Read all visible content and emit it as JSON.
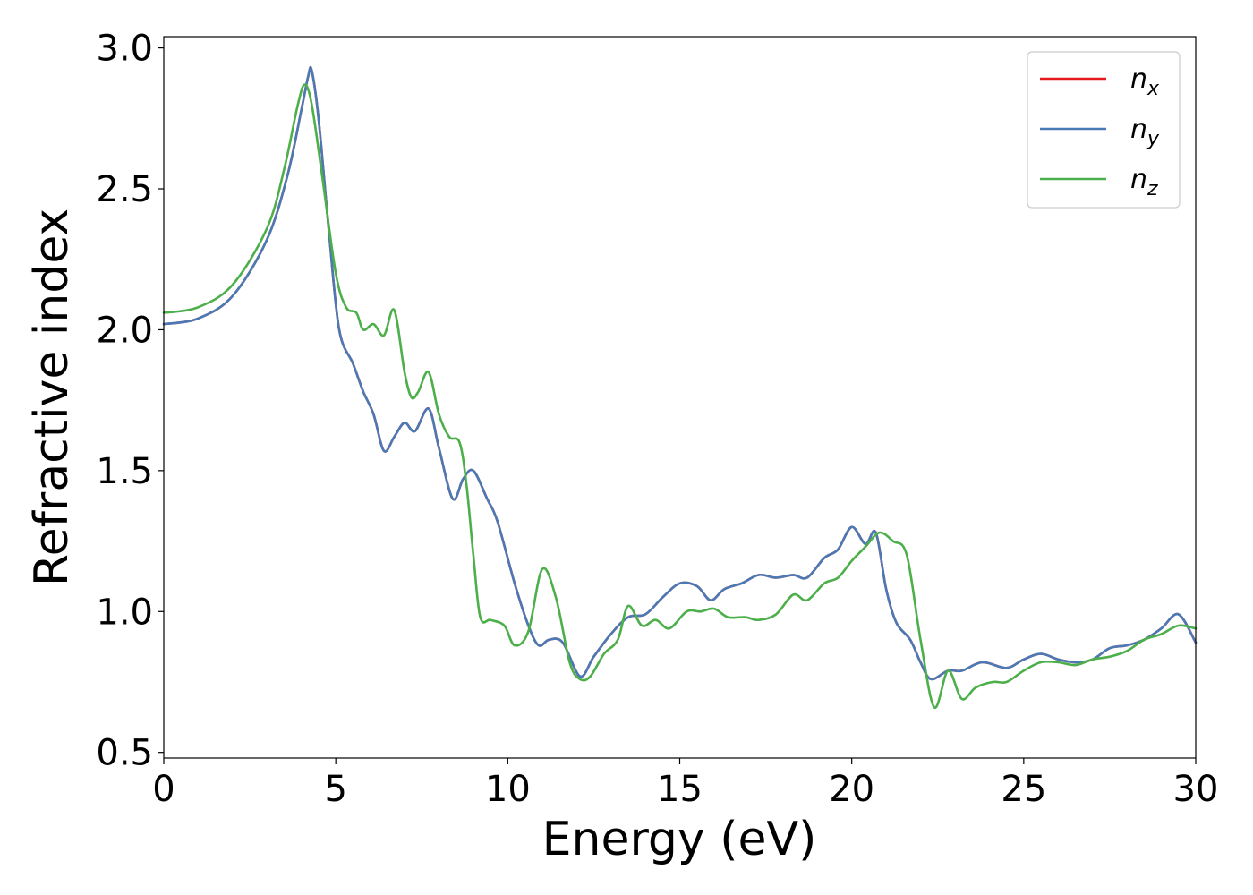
{
  "chart_data": {
    "type": "line",
    "title": "",
    "xlabel": "Energy (eV)",
    "ylabel": "Refractive index",
    "xlim": [
      0,
      30
    ],
    "ylim": [
      0.48,
      3.04
    ],
    "xticks": [
      0,
      5,
      10,
      15,
      20,
      25,
      30
    ],
    "yticks": [
      0.5,
      1.0,
      1.5,
      2.0,
      2.5,
      3.0
    ],
    "xtick_labels": [
      "0",
      "5",
      "10",
      "15",
      "20",
      "25",
      "30"
    ],
    "ytick_labels": [
      "0.5",
      "1.0",
      "1.5",
      "2.0",
      "2.5",
      "3.0"
    ],
    "grid": false,
    "legend_position": "top-right",
    "series": [
      {
        "name": "n_x",
        "legend_base": "n",
        "legend_sub": "x",
        "color": "#e41a1c",
        "points": [
          [
            0,
            2.02
          ],
          [
            1,
            2.04
          ],
          [
            2,
            2.12
          ],
          [
            3,
            2.32
          ],
          [
            3.6,
            2.55
          ],
          [
            4.0,
            2.78
          ],
          [
            4.2,
            2.9
          ],
          [
            4.3,
            2.92
          ],
          [
            4.5,
            2.75
          ],
          [
            4.8,
            2.35
          ],
          [
            5.1,
            2.0
          ],
          [
            5.5,
            1.88
          ],
          [
            5.8,
            1.78
          ],
          [
            6.1,
            1.7
          ],
          [
            6.4,
            1.57
          ],
          [
            6.7,
            1.62
          ],
          [
            7.0,
            1.67
          ],
          [
            7.3,
            1.64
          ],
          [
            7.7,
            1.72
          ],
          [
            8.0,
            1.58
          ],
          [
            8.4,
            1.4
          ],
          [
            8.7,
            1.47
          ],
          [
            9.0,
            1.5
          ],
          [
            9.4,
            1.4
          ],
          [
            9.7,
            1.32
          ],
          [
            10.2,
            1.1
          ],
          [
            10.6,
            0.95
          ],
          [
            10.9,
            0.88
          ],
          [
            11.2,
            0.9
          ],
          [
            11.6,
            0.89
          ],
          [
            12.1,
            0.77
          ],
          [
            12.5,
            0.84
          ],
          [
            13.0,
            0.92
          ],
          [
            13.5,
            0.98
          ],
          [
            14.0,
            0.99
          ],
          [
            14.5,
            1.05
          ],
          [
            15.0,
            1.1
          ],
          [
            15.5,
            1.09
          ],
          [
            15.9,
            1.04
          ],
          [
            16.3,
            1.08
          ],
          [
            16.8,
            1.1
          ],
          [
            17.3,
            1.13
          ],
          [
            17.8,
            1.12
          ],
          [
            18.3,
            1.13
          ],
          [
            18.7,
            1.12
          ],
          [
            19.2,
            1.19
          ],
          [
            19.6,
            1.22
          ],
          [
            20.0,
            1.3
          ],
          [
            20.4,
            1.24
          ],
          [
            20.7,
            1.28
          ],
          [
            21.0,
            1.08
          ],
          [
            21.3,
            0.96
          ],
          [
            21.7,
            0.9
          ],
          [
            22.0,
            0.82
          ],
          [
            22.3,
            0.76
          ],
          [
            22.8,
            0.79
          ],
          [
            23.2,
            0.79
          ],
          [
            23.8,
            0.82
          ],
          [
            24.5,
            0.8
          ],
          [
            25.0,
            0.83
          ],
          [
            25.5,
            0.85
          ],
          [
            26.0,
            0.83
          ],
          [
            26.5,
            0.82
          ],
          [
            27.0,
            0.83
          ],
          [
            27.5,
            0.87
          ],
          [
            28.0,
            0.88
          ],
          [
            28.5,
            0.9
          ],
          [
            29.0,
            0.94
          ],
          [
            29.5,
            0.99
          ],
          [
            30.0,
            0.89
          ]
        ]
      },
      {
        "name": "n_y",
        "legend_base": "n",
        "legend_sub": "y",
        "color": "#4a7ab5",
        "points": [
          [
            0,
            2.02
          ],
          [
            1,
            2.04
          ],
          [
            2,
            2.12
          ],
          [
            3,
            2.32
          ],
          [
            3.6,
            2.55
          ],
          [
            4.0,
            2.78
          ],
          [
            4.2,
            2.9
          ],
          [
            4.3,
            2.92
          ],
          [
            4.5,
            2.75
          ],
          [
            4.8,
            2.35
          ],
          [
            5.1,
            2.0
          ],
          [
            5.5,
            1.88
          ],
          [
            5.8,
            1.78
          ],
          [
            6.1,
            1.7
          ],
          [
            6.4,
            1.57
          ],
          [
            6.7,
            1.62
          ],
          [
            7.0,
            1.67
          ],
          [
            7.3,
            1.64
          ],
          [
            7.7,
            1.72
          ],
          [
            8.0,
            1.58
          ],
          [
            8.4,
            1.4
          ],
          [
            8.7,
            1.47
          ],
          [
            9.0,
            1.5
          ],
          [
            9.4,
            1.4
          ],
          [
            9.7,
            1.32
          ],
          [
            10.2,
            1.1
          ],
          [
            10.6,
            0.95
          ],
          [
            10.9,
            0.88
          ],
          [
            11.2,
            0.9
          ],
          [
            11.6,
            0.89
          ],
          [
            12.1,
            0.77
          ],
          [
            12.5,
            0.84
          ],
          [
            13.0,
            0.92
          ],
          [
            13.5,
            0.98
          ],
          [
            14.0,
            0.99
          ],
          [
            14.5,
            1.05
          ],
          [
            15.0,
            1.1
          ],
          [
            15.5,
            1.09
          ],
          [
            15.9,
            1.04
          ],
          [
            16.3,
            1.08
          ],
          [
            16.8,
            1.1
          ],
          [
            17.3,
            1.13
          ],
          [
            17.8,
            1.12
          ],
          [
            18.3,
            1.13
          ],
          [
            18.7,
            1.12
          ],
          [
            19.2,
            1.19
          ],
          [
            19.6,
            1.22
          ],
          [
            20.0,
            1.3
          ],
          [
            20.4,
            1.24
          ],
          [
            20.7,
            1.28
          ],
          [
            21.0,
            1.08
          ],
          [
            21.3,
            0.96
          ],
          [
            21.7,
            0.9
          ],
          [
            22.0,
            0.82
          ],
          [
            22.3,
            0.76
          ],
          [
            22.8,
            0.79
          ],
          [
            23.2,
            0.79
          ],
          [
            23.8,
            0.82
          ],
          [
            24.5,
            0.8
          ],
          [
            25.0,
            0.83
          ],
          [
            25.5,
            0.85
          ],
          [
            26.0,
            0.83
          ],
          [
            26.5,
            0.82
          ],
          [
            27.0,
            0.83
          ],
          [
            27.5,
            0.87
          ],
          [
            28.0,
            0.88
          ],
          [
            28.5,
            0.9
          ],
          [
            29.0,
            0.94
          ],
          [
            29.5,
            0.99
          ],
          [
            30.0,
            0.89
          ]
        ]
      },
      {
        "name": "n_z",
        "legend_base": "n",
        "legend_sub": "z",
        "color": "#4daf4a",
        "points": [
          [
            0,
            2.06
          ],
          [
            1,
            2.08
          ],
          [
            2,
            2.16
          ],
          [
            3,
            2.36
          ],
          [
            3.5,
            2.57
          ],
          [
            3.9,
            2.8
          ],
          [
            4.1,
            2.87
          ],
          [
            4.3,
            2.8
          ],
          [
            4.6,
            2.55
          ],
          [
            5.0,
            2.2
          ],
          [
            5.3,
            2.08
          ],
          [
            5.6,
            2.06
          ],
          [
            5.8,
            2.0
          ],
          [
            6.1,
            2.02
          ],
          [
            6.4,
            1.98
          ],
          [
            6.7,
            2.07
          ],
          [
            7.0,
            1.85
          ],
          [
            7.2,
            1.76
          ],
          [
            7.4,
            1.78
          ],
          [
            7.7,
            1.85
          ],
          [
            8.0,
            1.7
          ],
          [
            8.3,
            1.62
          ],
          [
            8.6,
            1.6
          ],
          [
            8.8,
            1.45
          ],
          [
            9.0,
            1.2
          ],
          [
            9.2,
            0.98
          ],
          [
            9.5,
            0.97
          ],
          [
            9.9,
            0.95
          ],
          [
            10.2,
            0.88
          ],
          [
            10.6,
            0.93
          ],
          [
            11.0,
            1.15
          ],
          [
            11.4,
            1.05
          ],
          [
            11.8,
            0.82
          ],
          [
            12.1,
            0.76
          ],
          [
            12.4,
            0.77
          ],
          [
            12.8,
            0.85
          ],
          [
            13.2,
            0.9
          ],
          [
            13.5,
            1.02
          ],
          [
            13.9,
            0.95
          ],
          [
            14.3,
            0.97
          ],
          [
            14.7,
            0.94
          ],
          [
            15.2,
            1.0
          ],
          [
            15.6,
            1.0
          ],
          [
            16.0,
            1.01
          ],
          [
            16.4,
            0.98
          ],
          [
            16.9,
            0.98
          ],
          [
            17.3,
            0.97
          ],
          [
            17.8,
            0.99
          ],
          [
            18.3,
            1.06
          ],
          [
            18.7,
            1.04
          ],
          [
            19.2,
            1.1
          ],
          [
            19.6,
            1.12
          ],
          [
            20.0,
            1.18
          ],
          [
            20.4,
            1.23
          ],
          [
            20.8,
            1.28
          ],
          [
            21.2,
            1.25
          ],
          [
            21.6,
            1.2
          ],
          [
            22.0,
            0.9
          ],
          [
            22.4,
            0.66
          ],
          [
            22.8,
            0.79
          ],
          [
            23.2,
            0.69
          ],
          [
            23.6,
            0.73
          ],
          [
            24.1,
            0.75
          ],
          [
            24.5,
            0.75
          ],
          [
            25.0,
            0.79
          ],
          [
            25.5,
            0.82
          ],
          [
            26.0,
            0.82
          ],
          [
            26.5,
            0.81
          ],
          [
            27.0,
            0.83
          ],
          [
            27.5,
            0.84
          ],
          [
            28.0,
            0.86
          ],
          [
            28.5,
            0.9
          ],
          [
            29.0,
            0.92
          ],
          [
            29.5,
            0.95
          ],
          [
            30.0,
            0.94
          ]
        ]
      }
    ]
  }
}
